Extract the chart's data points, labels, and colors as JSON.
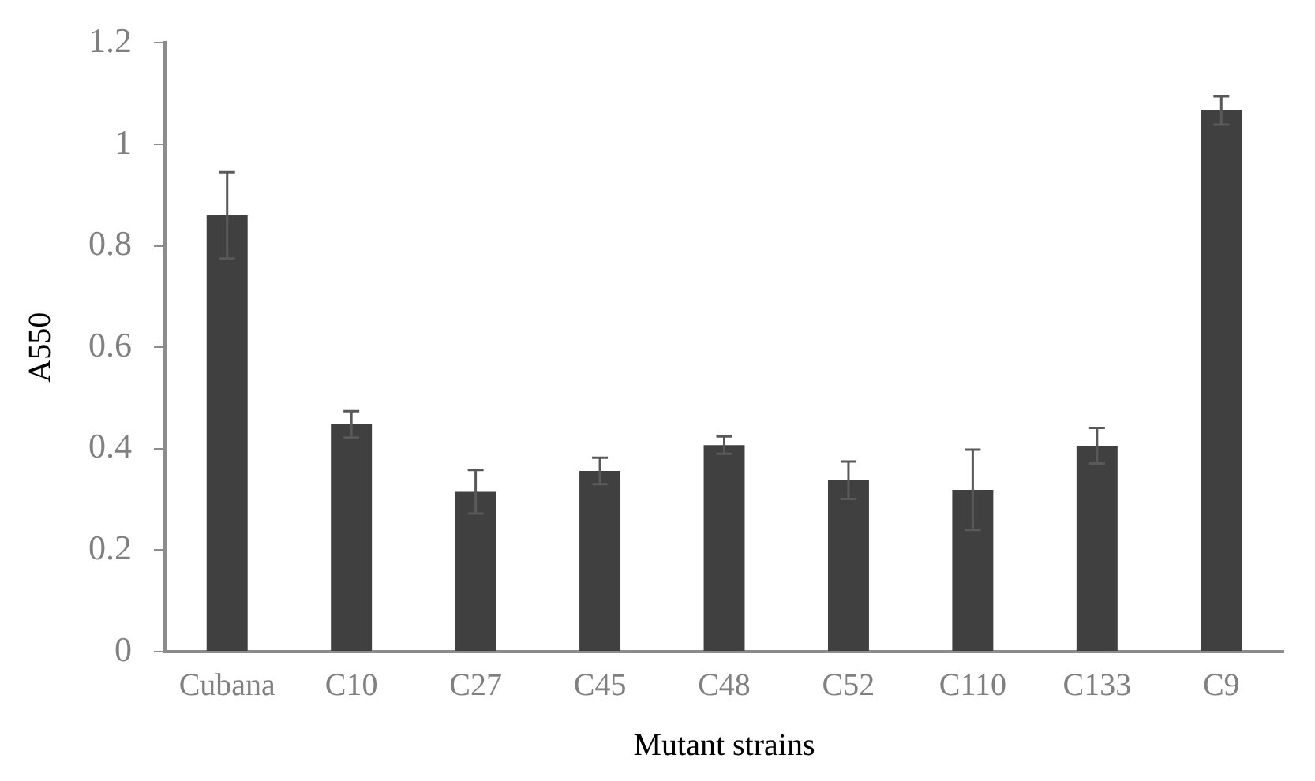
{
  "chart_data": {
    "type": "bar",
    "xlabel": "Mutant strains",
    "ylabel": "A550",
    "categories": [
      "Cubana",
      "C10",
      "C27",
      "C45",
      "C48",
      "C52",
      "C110",
      "C133",
      "C9"
    ],
    "values": [
      0.86,
      0.448,
      0.315,
      0.356,
      0.407,
      0.338,
      0.319,
      0.406,
      1.067
    ],
    "errors": [
      0.085,
      0.026,
      0.043,
      0.026,
      0.017,
      0.037,
      0.079,
      0.035,
      0.028
    ],
    "color": "#404040",
    "ylim": [
      0,
      1.2
    ],
    "yticks": [
      0,
      0.2,
      0.4,
      0.6,
      0.8,
      1,
      1.2
    ],
    "grid": false,
    "legend": false
  }
}
